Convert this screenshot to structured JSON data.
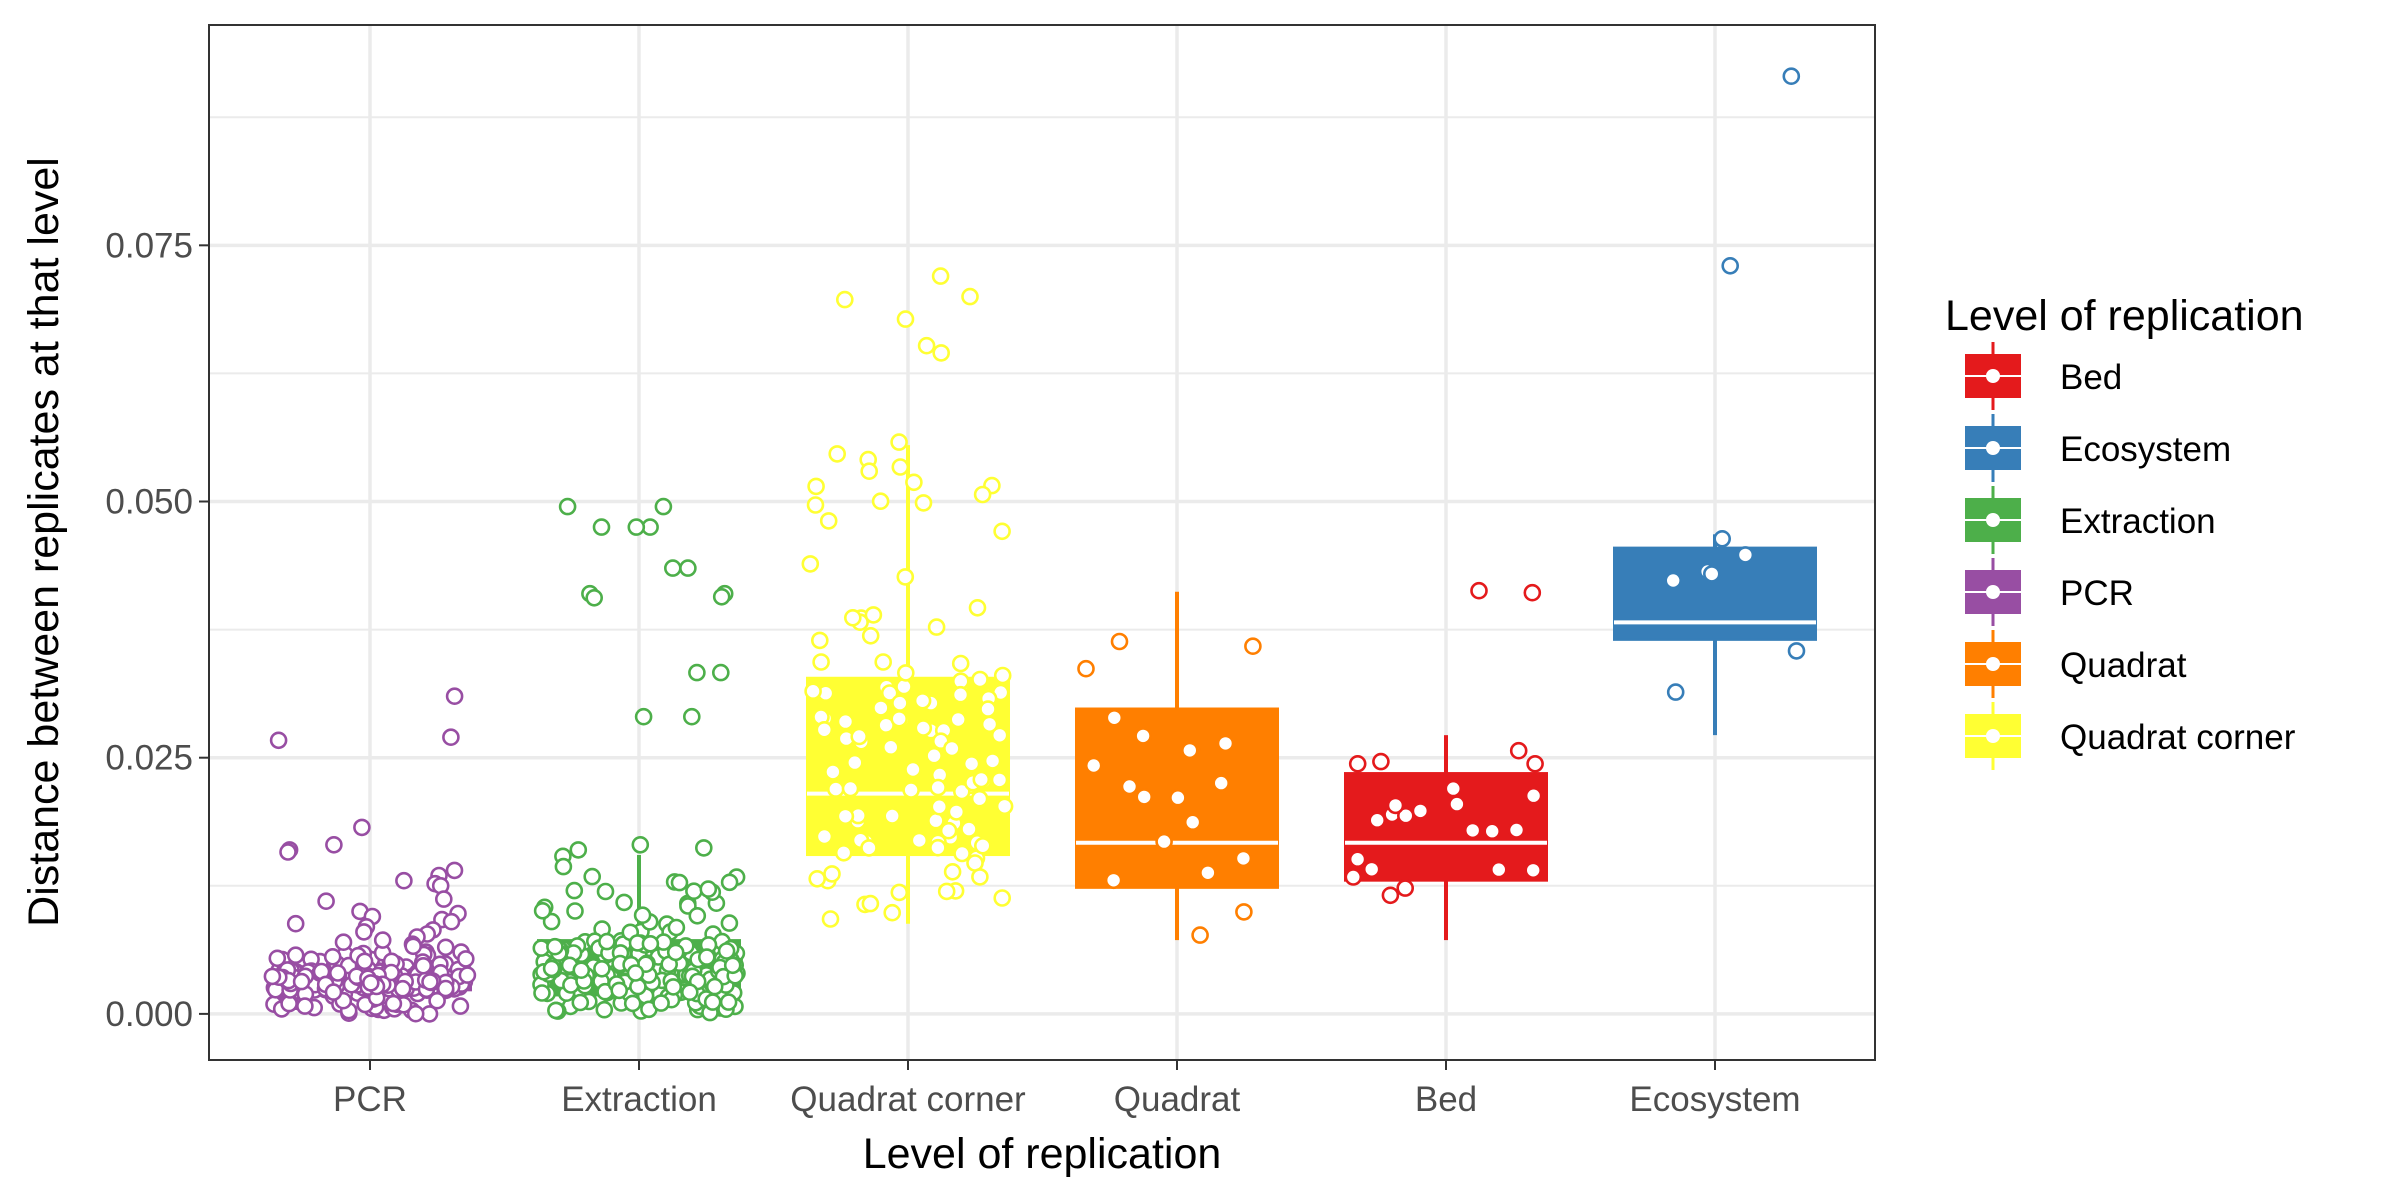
{
  "chart_data": {
    "type": "box",
    "title": "",
    "xlabel": "Level of replication",
    "ylabel": "Distance between replicates at that level",
    "categories": [
      "PCR",
      "Extraction",
      "Quadrat corner",
      "Quadrat",
      "Bed",
      "Ecosystem"
    ],
    "ylim": [
      -0.0045,
      0.0965
    ],
    "yticks": [
      0.0,
      0.025,
      0.05,
      0.075
    ],
    "ytick_labels": [
      "0.000",
      "0.025",
      "0.050",
      "0.075"
    ],
    "grid": true,
    "legend": {
      "title": "Level of replication",
      "placement": "right",
      "items": [
        "Bed",
        "Ecosystem",
        "Extraction",
        "PCR",
        "Quadrat",
        "Quadrat corner"
      ]
    },
    "colors": {
      "Bed": "#E41A1C",
      "Ecosystem": "#377EB8",
      "Extraction": "#4DAF4A",
      "PCR": "#984EA3",
      "Quadrat": "#FF7F00",
      "Quadrat corner": "#FFFF33"
    },
    "boxes": [
      {
        "category": "PCR",
        "min": 0.0,
        "q1": 0.0023,
        "median": 0.0032,
        "q3": 0.0042,
        "max": 0.0062
      },
      {
        "category": "Extraction",
        "min": 0.0,
        "q1": 0.0018,
        "median": 0.0045,
        "q3": 0.0072,
        "max": 0.0155
      },
      {
        "category": "Quadrat corner",
        "min": 0.0088,
        "q1": 0.0155,
        "median": 0.0215,
        "q3": 0.0328,
        "max": 0.0555
      },
      {
        "category": "Quadrat",
        "min": 0.0072,
        "q1": 0.0123,
        "median": 0.0167,
        "q3": 0.0298,
        "max": 0.0412
      },
      {
        "category": "Bed",
        "min": 0.0072,
        "q1": 0.013,
        "median": 0.0167,
        "q3": 0.0235,
        "max": 0.0272
      },
      {
        "category": "Ecosystem",
        "min": 0.0272,
        "q1": 0.0365,
        "median": 0.0382,
        "q3": 0.0455,
        "max": 0.0468
      }
    ],
    "outliers": [
      {
        "category": "PCR",
        "values": [
          0.031,
          0.027,
          0.0267,
          0.0182,
          0.0165,
          0.016,
          0.0158,
          0.014,
          0.0135,
          0.013,
          0.0127,
          0.0125,
          0.0112,
          0.011,
          0.01,
          0.0098,
          0.0095,
          0.0092,
          0.009,
          0.0088,
          0.0085,
          0.0082,
          0.008,
          0.0078,
          0.0075,
          0.0072,
          0.007,
          0.0068,
          0.0066,
          0.0065
        ]
      },
      {
        "category": "Extraction",
        "values": [
          0.0495,
          0.0495,
          0.0475,
          0.0475,
          0.0475,
          0.0435,
          0.0435,
          0.041,
          0.041,
          0.0407,
          0.0406,
          0.0333,
          0.0333,
          0.029,
          0.029,
          0.0165,
          0.0162,
          0.016
        ]
      },
      {
        "category": "Quadrat corner",
        "values": [
          0.072,
          0.07,
          0.0697,
          0.0678,
          0.0652,
          0.0645,
          0.0558
        ]
      },
      {
        "category": "Bed",
        "values": [
          0.0413,
          0.0411
        ]
      },
      {
        "category": "Ecosystem",
        "values": [
          0.0915,
          0.073
        ]
      }
    ]
  }
}
